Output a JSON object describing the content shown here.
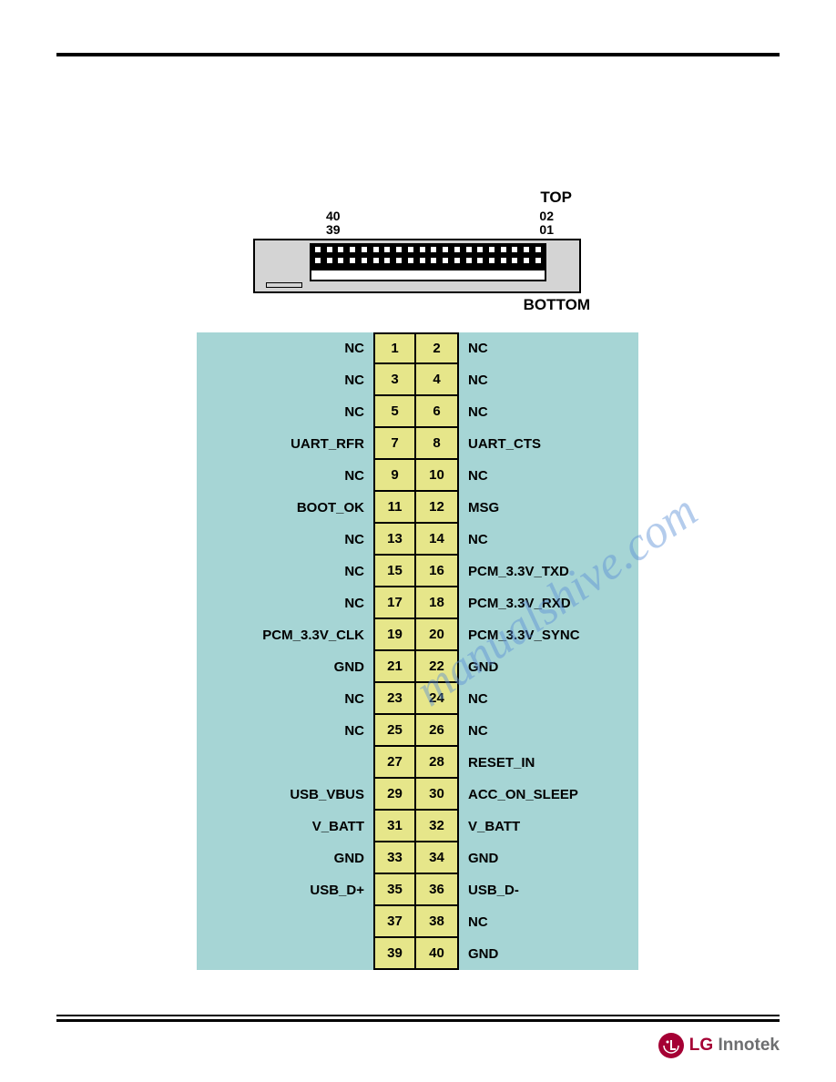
{
  "connector": {
    "top_label": "TOP",
    "bottom_label": "BOTTOM",
    "num_tl": "40",
    "num_bl": "39",
    "num_tr": "02",
    "num_br": "01",
    "pin_count_per_row": 20,
    "body_color": "#d4d4d4",
    "pin_block_color": "#000000"
  },
  "pinout": {
    "left_bg": "#a6d5d5",
    "right_bg": "#a6d5d5",
    "cell_bg": "#e6e68a",
    "cell_border": "#000000",
    "label_fontsize": 15,
    "rows": [
      {
        "left": "NC",
        "p1": "1",
        "p2": "2",
        "right": "NC"
      },
      {
        "left": "NC",
        "p1": "3",
        "p2": "4",
        "right": "NC"
      },
      {
        "left": "NC",
        "p1": "5",
        "p2": "6",
        "right": "NC"
      },
      {
        "left": "UART_RFR",
        "p1": "7",
        "p2": "8",
        "right": "UART_CTS"
      },
      {
        "left": "NC",
        "p1": "9",
        "p2": "10",
        "right": "NC"
      },
      {
        "left": "BOOT_OK",
        "p1": "11",
        "p2": "12",
        "right": "MSG"
      },
      {
        "left": "NC",
        "p1": "13",
        "p2": "14",
        "right": "NC"
      },
      {
        "left": "NC",
        "p1": "15",
        "p2": "16",
        "right": "PCM_3.3V_TXD"
      },
      {
        "left": "NC",
        "p1": "17",
        "p2": "18",
        "right": "PCM_3.3V_RXD"
      },
      {
        "left": "PCM_3.3V_CLK",
        "p1": "19",
        "p2": "20",
        "right": "PCM_3.3V_SYNC"
      },
      {
        "left": "GND",
        "p1": "21",
        "p2": "22",
        "right": "GND"
      },
      {
        "left": "NC",
        "p1": "23",
        "p2": "24",
        "right": "NC"
      },
      {
        "left": "NC",
        "p1": "25",
        "p2": "26",
        "right": "NC"
      },
      {
        "left": "",
        "p1": "27",
        "p2": "28",
        "right": "RESET_IN"
      },
      {
        "left": "USB_VBUS",
        "p1": "29",
        "p2": "30",
        "right": "ACC_ON_SLEEP"
      },
      {
        "left": "V_BATT",
        "p1": "31",
        "p2": "32",
        "right": "V_BATT"
      },
      {
        "left": "GND",
        "p1": "33",
        "p2": "34",
        "right": "GND"
      },
      {
        "left": "USB_D+",
        "p1": "35",
        "p2": "36",
        "right": "USB_D-"
      },
      {
        "left": "",
        "p1": "37",
        "p2": "38",
        "right": "NC"
      },
      {
        "left": "",
        "p1": "39",
        "p2": "40",
        "right": "GND"
      }
    ]
  },
  "watermark": "manualshive.com",
  "logo": {
    "brand": "LG",
    "suffix": "Innotek",
    "circle_color": "#a50034",
    "text_color": "#6d6e70"
  }
}
